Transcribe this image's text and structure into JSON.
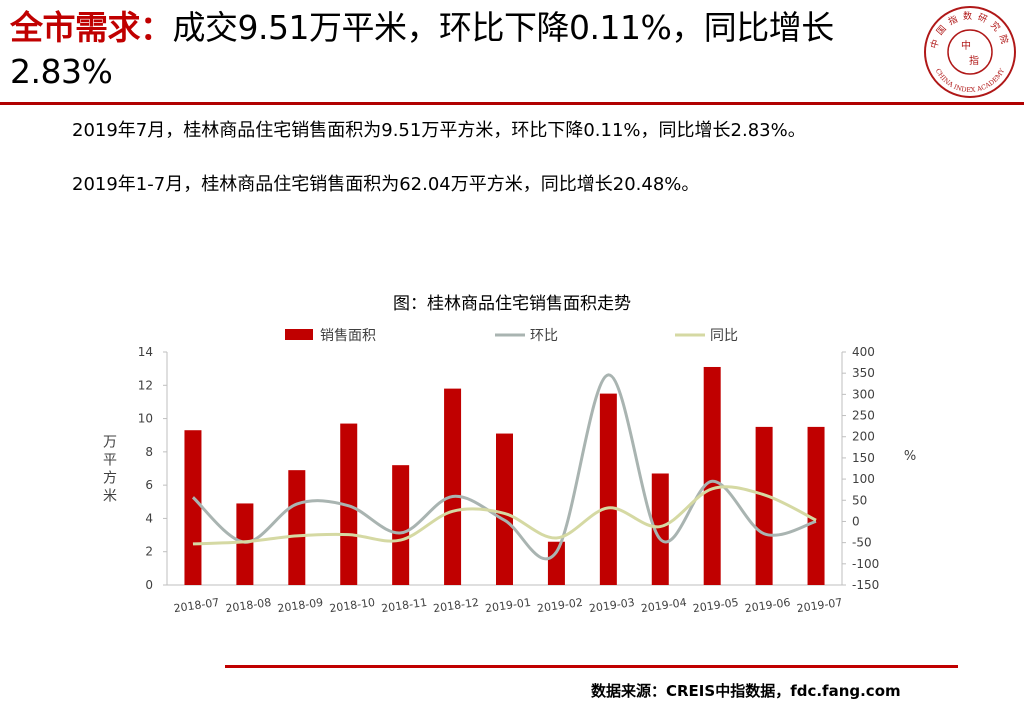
{
  "header": {
    "title_highlight": "全市需求：",
    "title_rest": "成交9.51万平米，环比下降0.11%，同比增长2.83%"
  },
  "logo": {
    "text_cn": "中国指数研究院",
    "text_en": "CHINA INDEX ACADEMY",
    "center_chars": [
      "中",
      "指"
    ],
    "color": "#b01818"
  },
  "paragraphs": [
    "2019年7月，桂林商品住宅销售面积为9.51万平方米，环比下降0.11%，同比增长2.83%。",
    "2019年1-7月，桂林商品住宅销售面积为62.04万平方米，同比增长20.48%。"
  ],
  "footer": {
    "source": "数据来源：CREIS中指数据，fdc.fang.com"
  },
  "chart_data": {
    "type": "bar",
    "title": "图：桂林商品住宅销售面积走势",
    "categories": [
      "2018-07",
      "2018-08",
      "2018-09",
      "2018-10",
      "2018-11",
      "2018-12",
      "2019-01",
      "2019-02",
      "2019-03",
      "2019-04",
      "2019-05",
      "2019-06",
      "2019-07"
    ],
    "ylabel": "万平方米",
    "y2label": "%",
    "ylim": [
      0,
      14
    ],
    "yticks": [
      0,
      2,
      4,
      6,
      8,
      10,
      12,
      14
    ],
    "y2lim": [
      -150,
      400
    ],
    "y2ticks": [
      -150,
      -100,
      -50,
      0,
      50,
      100,
      150,
      200,
      250,
      300,
      350,
      400
    ],
    "legend_position": "top",
    "grid": false,
    "series": [
      {
        "name": "销售面积",
        "chart": "bar",
        "axis": "left",
        "color": "#c00000",
        "values": [
          9.3,
          4.9,
          6.9,
          9.7,
          7.2,
          11.8,
          9.1,
          2.6,
          11.5,
          6.7,
          13.1,
          9.5,
          9.5
        ]
      },
      {
        "name": "环比",
        "chart": "line",
        "axis": "right",
        "color": "#a9b4b1",
        "values": [
          57,
          -49,
          41,
          37,
          -27,
          59,
          3,
          -72,
          346,
          -42,
          95,
          -29,
          0
        ]
      },
      {
        "name": "同比",
        "chart": "line",
        "axis": "right",
        "color": "#d5d9a3",
        "values": [
          -53,
          -48,
          -34,
          -31,
          -44,
          24,
          19,
          -39,
          32,
          -12,
          77,
          63,
          3
        ]
      }
    ]
  }
}
